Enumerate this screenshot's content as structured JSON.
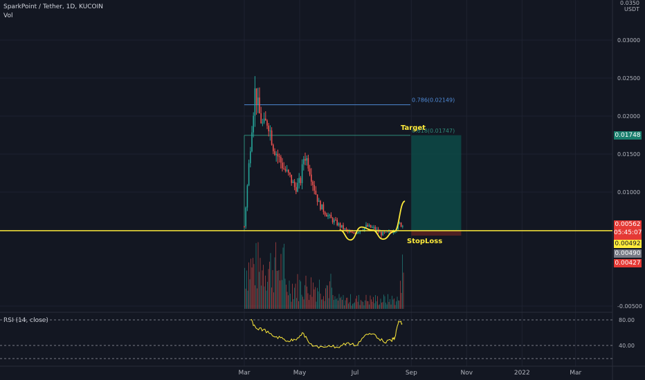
{
  "header": {
    "title": "SparkPoint / Tether, 1D, KUCOIN",
    "vol_label": "Vol",
    "price_unit_top": "0.0350",
    "currency": "USDT"
  },
  "colors": {
    "background": "#131722",
    "up": "#26a69a",
    "down": "#ef5350",
    "yellow": "#ffeb3b",
    "fib_786": "#4f8ad6",
    "fib_618": "#2e8b7a",
    "target_zone": "#0d4a46",
    "stop_zone": "#5a2222"
  },
  "annotations": {
    "fib_786": "0.786(0.02149)",
    "fib_618": "0.618(0.01747)",
    "target": "Target",
    "stoploss": "StopLoss"
  },
  "price_tags": {
    "target": "0.01748",
    "last_price": "0.00562",
    "countdown": "05:45:07",
    "line_level": "0.00492",
    "tag_4": "0.00490",
    "tag_5": "0.00427"
  },
  "rsi": {
    "label": "RSI (14, close)",
    "levels": [
      "80.00",
      "40.00"
    ]
  },
  "chart_data": [
    {
      "type": "candlestick",
      "title": "SparkPoint / Tether, 1D, KUCOIN",
      "x_tick_labels": [
        "Mar",
        "May",
        "Jul",
        "Sep",
        "Nov",
        "2022",
        "Mar"
      ],
      "y_tick_labels": [
        "0.03000",
        "0.02500",
        "0.02000",
        "0.01500",
        "0.01000",
        "-0.00500"
      ],
      "y_tick_values": [
        0.03,
        0.025,
        0.02,
        0.015,
        0.01,
        -0.005
      ],
      "ylim": [
        -0.0055,
        0.0325
      ],
      "price_path": [
        {
          "date": "2021-03-01",
          "value": 0.0055
        },
        {
          "date": "2021-03-05",
          "value": 0.0118
        },
        {
          "date": "2021-03-09",
          "value": 0.0185
        },
        {
          "date": "2021-03-13",
          "value": 0.0235
        },
        {
          "date": "2021-03-17",
          "value": 0.0205
        },
        {
          "date": "2021-03-22",
          "value": 0.0185
        },
        {
          "date": "2021-03-27",
          "value": 0.0195
        },
        {
          "date": "2021-04-02",
          "value": 0.016
        },
        {
          "date": "2021-04-08",
          "value": 0.0145
        },
        {
          "date": "2021-04-14",
          "value": 0.013
        },
        {
          "date": "2021-04-20",
          "value": 0.012
        },
        {
          "date": "2021-04-26",
          "value": 0.0105
        },
        {
          "date": "2021-05-02",
          "value": 0.0115
        },
        {
          "date": "2021-05-06",
          "value": 0.015
        },
        {
          "date": "2021-05-10",
          "value": 0.014
        },
        {
          "date": "2021-05-16",
          "value": 0.011
        },
        {
          "date": "2021-05-22",
          "value": 0.0085
        },
        {
          "date": "2021-05-28",
          "value": 0.0075
        },
        {
          "date": "2021-06-04",
          "value": 0.0065
        },
        {
          "date": "2021-06-12",
          "value": 0.0058
        },
        {
          "date": "2021-06-20",
          "value": 0.005
        },
        {
          "date": "2021-06-28",
          "value": 0.0045
        },
        {
          "date": "2021-07-06",
          "value": 0.005
        },
        {
          "date": "2021-07-14",
          "value": 0.0055
        },
        {
          "date": "2021-07-22",
          "value": 0.0052
        },
        {
          "date": "2021-07-30",
          "value": 0.0045
        },
        {
          "date": "2021-08-07",
          "value": 0.0046
        },
        {
          "date": "2021-08-15",
          "value": 0.0052
        },
        {
          "date": "2021-08-19",
          "value": 0.0058
        },
        {
          "date": "2021-08-23",
          "value": 0.0056
        }
      ],
      "projection_path": [
        {
          "date": "2021-06-14",
          "value": 0.005
        },
        {
          "date": "2021-06-26",
          "value": 0.0037
        },
        {
          "date": "2021-07-08",
          "value": 0.0054
        },
        {
          "date": "2021-07-20",
          "value": 0.005
        },
        {
          "date": "2021-08-01",
          "value": 0.0038
        },
        {
          "date": "2021-08-13",
          "value": 0.0048
        },
        {
          "date": "2021-08-25",
          "value": 0.0088
        }
      ],
      "fib_786": {
        "label": "0.786(0.02149)",
        "value": 0.02149,
        "from": "2021-03-01",
        "to": "2021-08-31"
      },
      "fib_618": {
        "label": "0.618(0.01747)",
        "value": 0.01747,
        "from": "2021-03-01",
        "to": "2021-08-31"
      },
      "horizontal_line": {
        "value": 0.00492
      },
      "position": {
        "from": "2021-09-01",
        "to": "2021-10-26",
        "entry": 0.00492,
        "target": 0.01748,
        "stop": 0.00427
      },
      "volume": {
        "ylim": [
          0,
          1
        ]
      },
      "grid": true
    },
    {
      "type": "line",
      "title": "RSI (14, close)",
      "y_tick_labels": [
        "80.00",
        "40.00"
      ],
      "ylim": [
        20,
        90
      ],
      "levels": [
        80,
        40
      ],
      "series": [
        {
          "name": "RSI (14, close)",
          "values": [
            {
              "date": "2021-03-08",
              "value": 80
            },
            {
              "date": "2021-03-14",
              "value": 67
            },
            {
              "date": "2021-03-22",
              "value": 65
            },
            {
              "date": "2021-04-01",
              "value": 55
            },
            {
              "date": "2021-04-10",
              "value": 52
            },
            {
              "date": "2021-04-18",
              "value": 47
            },
            {
              "date": "2021-04-26",
              "value": 49
            },
            {
              "date": "2021-05-04",
              "value": 60
            },
            {
              "date": "2021-05-12",
              "value": 43
            },
            {
              "date": "2021-05-22",
              "value": 36
            },
            {
              "date": "2021-06-02",
              "value": 40
            },
            {
              "date": "2021-06-12",
              "value": 37
            },
            {
              "date": "2021-06-22",
              "value": 44
            },
            {
              "date": "2021-07-02",
              "value": 40
            },
            {
              "date": "2021-07-12",
              "value": 56
            },
            {
              "date": "2021-07-22",
              "value": 58
            },
            {
              "date": "2021-08-01",
              "value": 46
            },
            {
              "date": "2021-08-10",
              "value": 47
            },
            {
              "date": "2021-08-14",
              "value": 53
            },
            {
              "date": "2021-08-18",
              "value": 78
            },
            {
              "date": "2021-08-22",
              "value": 74
            }
          ]
        }
      ]
    }
  ]
}
